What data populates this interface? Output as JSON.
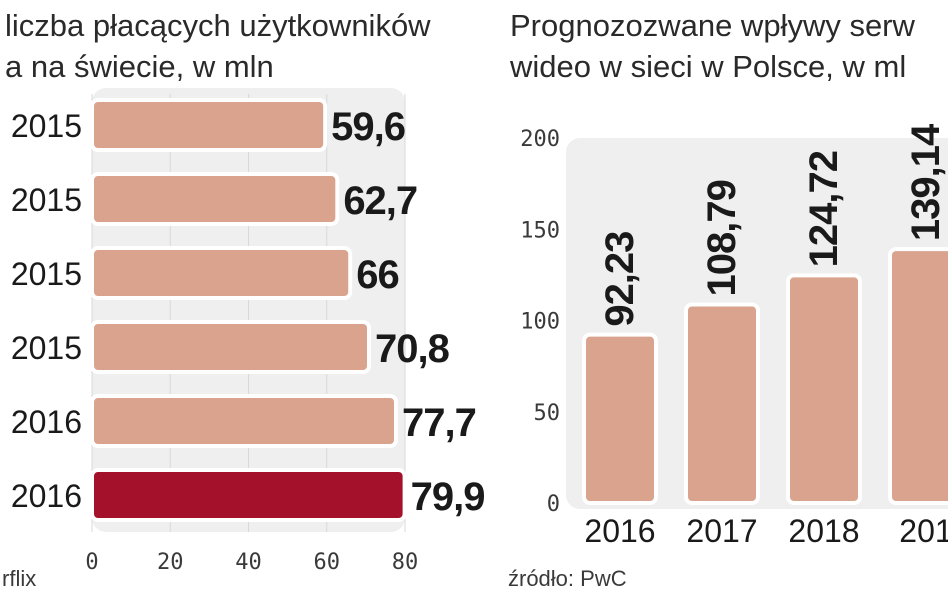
{
  "colors": {
    "bar": "#d9a38e",
    "bar_highlight": "#a3112b",
    "bar_outline": "#ffffff",
    "plot_bg": "#efefef",
    "text": "#1a1a1a"
  },
  "left": {
    "title_lines": [
      "liczba płacących użytkowników",
      "a na świecie, w mln"
    ],
    "source": "rflix"
  },
  "right": {
    "title_lines": [
      "Prognozozwane wpływy serw",
      "wideo w sieci w Polsce, w ml"
    ],
    "source": "źródło: PwC"
  },
  "chart_data": [
    {
      "type": "bar",
      "orientation": "horizontal",
      "categories": [
        "2015",
        "2015",
        "2015",
        "2015",
        "2016",
        "2016"
      ],
      "values": [
        59.6,
        62.7,
        66,
        70.8,
        77.7,
        79.9
      ],
      "value_labels": [
        "59,6",
        "62,7",
        "66",
        "70,8",
        "77,7",
        "79,9"
      ],
      "highlight_index": 5,
      "xlim": [
        0,
        80
      ],
      "xticks": [
        "0",
        "20",
        "40",
        "60",
        "80"
      ],
      "grid": true
    },
    {
      "type": "bar",
      "orientation": "vertical",
      "categories": [
        "2016",
        "2017",
        "2018",
        "201"
      ],
      "values": [
        92.23,
        108.79,
        124.72,
        139.14
      ],
      "value_labels": [
        "92,23",
        "108,79",
        "124,72",
        "139,14"
      ],
      "ylim": [
        0,
        200
      ],
      "yticks": [
        "0",
        "50",
        "100",
        "150",
        "200"
      ],
      "grid": false
    }
  ]
}
